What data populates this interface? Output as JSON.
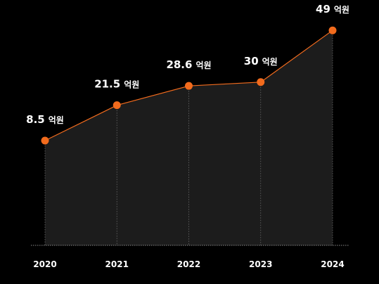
{
  "chart_data": {
    "type": "area",
    "title": "",
    "xlabel": "",
    "ylabel": "",
    "categories": [
      "2020",
      "2021",
      "2022",
      "2023",
      "2024"
    ],
    "series": [
      {
        "values": [
          8.5,
          21.5,
          28.6,
          30,
          49
        ],
        "data_labels": [
          "8.5",
          "21.5",
          "28.6",
          "30",
          "49"
        ]
      }
    ],
    "unit": "억원",
    "ylim": [
      -30,
      55
    ],
    "grid": false,
    "legend": "none",
    "colors": {
      "background": "#000000",
      "line": "#f26b1d",
      "marker": "#f26b1d",
      "area": "#1c1c1c",
      "dropline": "#6a6a6a",
      "baseline": "#8a8a8a",
      "text": "#ffffff"
    }
  }
}
